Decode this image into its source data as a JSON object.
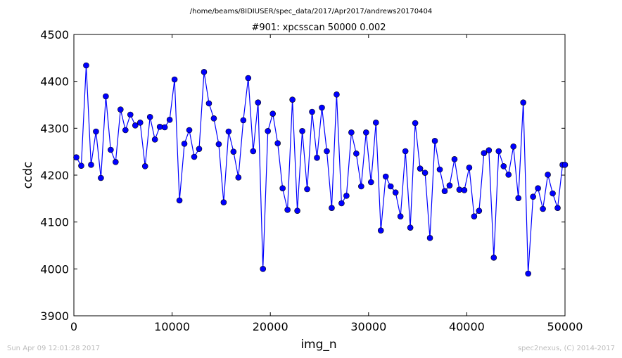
{
  "chart_data": {
    "type": "line",
    "suptitle": "/home/beams/8IDIUSER/spec_data/2017/Apr2017/andrews20170404",
    "title": "#901: xpcsscan 50000 0.002",
    "xlabel": "img_n",
    "ylabel": "ccdc",
    "xlim": [
      0,
      50000
    ],
    "ylim": [
      3900,
      4500
    ],
    "xticks": [
      "0",
      "10000",
      "20000",
      "30000",
      "40000",
      "50000"
    ],
    "yticks": [
      "3900",
      "4000",
      "4100",
      "4200",
      "4300",
      "4400",
      "4500"
    ],
    "grid": false,
    "line_color": "#0000ff",
    "marker_color": "#0000ff",
    "series": [
      {
        "x": [
          250,
          750,
          1250,
          1750,
          2250,
          2750,
          3250,
          3750,
          4250,
          4750,
          5250,
          5750,
          6250,
          6750,
          7250,
          7750,
          8250,
          8750,
          9250,
          9750,
          10250,
          10750,
          11250,
          11750,
          12250,
          12750,
          13250,
          13750,
          14250,
          14750,
          15250,
          15750,
          16250,
          16750,
          17250,
          17750,
          18250,
          18750,
          19250,
          19750,
          20250,
          20750,
          21250,
          21750,
          22250,
          22750,
          23250,
          23750,
          24250,
          24750,
          25250,
          25750,
          26250,
          26750,
          27250,
          27750,
          28250,
          28750,
          29250,
          29750,
          30250,
          30750,
          31250,
          31750,
          32250,
          32750,
          33250,
          33750,
          34250,
          34750,
          35250,
          35750,
          36250,
          36750,
          37250,
          37750,
          38250,
          38750,
          39250,
          39750,
          40250,
          40750,
          41250,
          41750,
          42250,
          42750,
          43250,
          43750,
          44250,
          44750,
          45250,
          45750,
          46250,
          46750,
          47250,
          47750,
          48250,
          48750,
          49250,
          49750,
          50000
        ],
        "values": [
          4238,
          4220,
          4434,
          4222,
          4293,
          4194,
          4368,
          4254,
          4228,
          4340,
          4296,
          4329,
          4306,
          4312,
          4219,
          4324,
          4276,
          4303,
          4302,
          4318,
          4404,
          4146,
          4267,
          4296,
          4239,
          4256,
          4420,
          4353,
          4321,
          4266,
          4142,
          4293,
          4250,
          4195,
          4317,
          4407,
          4251,
          4355,
          4000,
          4294,
          4331,
          4268,
          4172,
          4126,
          4361,
          4124,
          4294,
          4170,
          4335,
          4237,
          4344,
          4251,
          4130,
          4372,
          4140,
          4156,
          4291,
          4246,
          4176,
          4291,
          4185,
          4312,
          4082,
          4197,
          4176,
          4163,
          4112,
          4251,
          4088,
          4311,
          4214,
          4205,
          4066,
          4273,
          4212,
          4166,
          4178,
          4234,
          4169,
          4168,
          4216,
          4112,
          4124,
          4247,
          4253,
          4024,
          4251,
          4219,
          4201,
          4261,
          4151,
          4355,
          3990,
          4154,
          4172,
          4128,
          4201,
          4161,
          4130,
          4222,
          4222
        ]
      }
    ]
  },
  "footer": {
    "left": "Sun Apr 09 12:01:28 2017",
    "right": "spec2nexus, (C) 2014-2017"
  }
}
